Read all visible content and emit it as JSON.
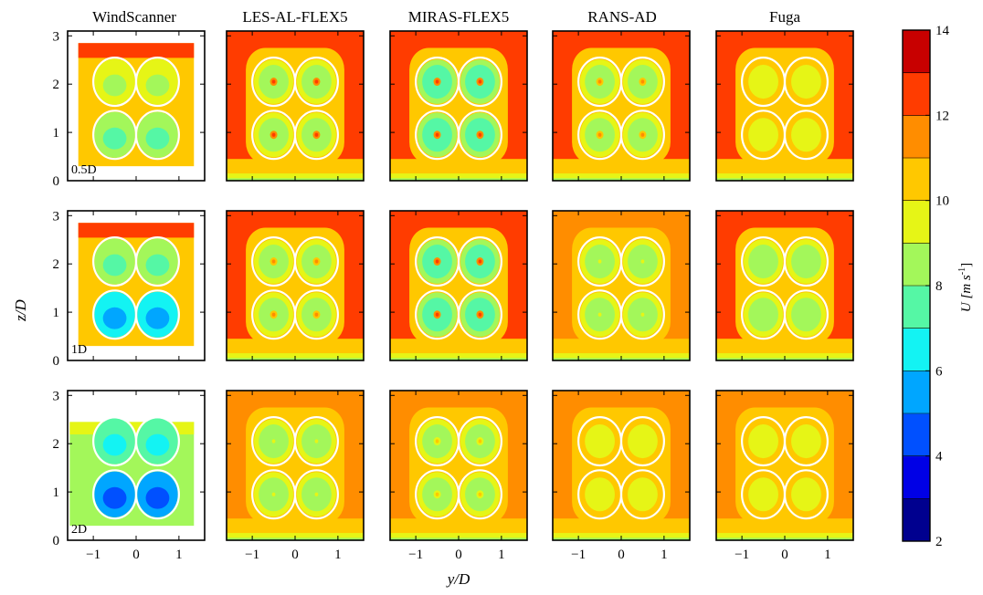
{
  "chart_data": {
    "type": "heatmap",
    "description_units": "U [m s-1]",
    "columns": [
      "WindScanner",
      "LES-AL-FLEX5",
      "MIRAS-FLEX5",
      "RANS-AD",
      "Fuga"
    ],
    "rows": [
      "0.5D",
      "1D",
      "2D"
    ],
    "xlabel": "y/D",
    "ylabel": "z/D",
    "xticks": [
      "−1",
      "0",
      "1"
    ],
    "xtick_values": [
      -1,
      0,
      1
    ],
    "yticks": [
      "0",
      "1",
      "2",
      "3"
    ],
    "ytick_values": [
      0,
      1,
      2,
      3
    ],
    "xlim": [
      -1.6,
      1.6
    ],
    "ylim": [
      0,
      3.1
    ],
    "colorbar": {
      "label_main": "U [m s",
      "label_sup": "-1",
      "label_end": "]",
      "min": 2,
      "max": 14,
      "levels": [
        2,
        3,
        4,
        5,
        6,
        7,
        8,
        9,
        10,
        11,
        12,
        13,
        14
      ],
      "ticks": [
        "2",
        "4",
        "6",
        "8",
        "10",
        "12",
        "14"
      ],
      "tick_values": [
        2,
        4,
        6,
        8,
        10,
        12,
        14
      ],
      "colors": [
        "#00008f",
        "#0000e6",
        "#0050ff",
        "#00a6ff",
        "#13f3f3",
        "#55f7a5",
        "#a3f75a",
        "#e6f516",
        "#ffc800",
        "#ff8d00",
        "#ff3c00",
        "#c80000"
      ]
    },
    "rotor_centers_yz": [
      [
        -0.5,
        2.05
      ],
      [
        0.5,
        2.05
      ],
      [
        -0.5,
        0.95
      ],
      [
        0.5,
        0.95
      ]
    ],
    "rotor_radius": 0.5,
    "panels": {
      "WindScanner": [
        {
          "row": "0.5D",
          "background": 10.5,
          "top_band": 12.5,
          "upper_rotors": 9.5,
          "lower_rotors": 8.0,
          "domain_y": [
            -1.35,
            1.35
          ],
          "domain_z": [
            0.3,
            2.85
          ]
        },
        {
          "row": "1D",
          "background": 10.0,
          "top_band": 12.0,
          "upper_rotors": 8.8,
          "lower_rotors": 6.5,
          "domain_y": [
            -1.35,
            1.35
          ],
          "domain_z": [
            0.3,
            2.85
          ]
        },
        {
          "row": "2D",
          "background": 8.0,
          "top_band": 9.0,
          "upper_rotors": 7.5,
          "lower_rotors": 5.0,
          "domain_y": [
            -1.55,
            1.35
          ],
          "domain_z": [
            0.3,
            2.45
          ]
        }
      ],
      "LES-AL-FLEX5": [
        {
          "row": "0.5D",
          "background": 12.5,
          "ring": 10.5,
          "rotor_core": 8.0,
          "hub": 12.5
        },
        {
          "row": "1D",
          "background": 12.5,
          "ring": 10.5,
          "rotor_core": 8.5,
          "hub": 11.5
        },
        {
          "row": "2D",
          "background": 11.0,
          "ring": 10.0,
          "rotor_core": 8.5,
          "hub": 9.5
        }
      ],
      "MIRAS-FLEX5": [
        {
          "row": "0.5D",
          "background": 12.5,
          "ring": 10.5,
          "rotor_core": 7.5,
          "hub": 12.8
        },
        {
          "row": "1D",
          "background": 12.5,
          "ring": 10.5,
          "rotor_core": 7.5,
          "hub": 12.5
        },
        {
          "row": "2D",
          "background": 11.5,
          "ring": 10.0,
          "rotor_core": 8.5,
          "hub": 10.5
        }
      ],
      "RANS-AD": [
        {
          "row": "0.5D",
          "background": 12.5,
          "ring": 10.5,
          "rotor_core": 8.0,
          "hub": 11.5
        },
        {
          "row": "1D",
          "background": 11.5,
          "ring": 10.5,
          "rotor_core": 8.5,
          "hub": 9.5
        },
        {
          "row": "2D",
          "background": 11.0,
          "ring": 10.5,
          "rotor_core": 9.5,
          "hub": 9.5
        }
      ],
      "Fuga": [
        {
          "row": "0.5D",
          "background": 12.5,
          "ring": 10.5,
          "rotor_core": 9.0,
          "hub": 9.0
        },
        {
          "row": "1D",
          "background": 12.5,
          "ring": 10.5,
          "rotor_core": 8.5,
          "hub": 8.5
        },
        {
          "row": "2D",
          "background": 11.5,
          "ring": 10.5,
          "rotor_core": 9.0,
          "hub": 9.0
        }
      ]
    }
  }
}
